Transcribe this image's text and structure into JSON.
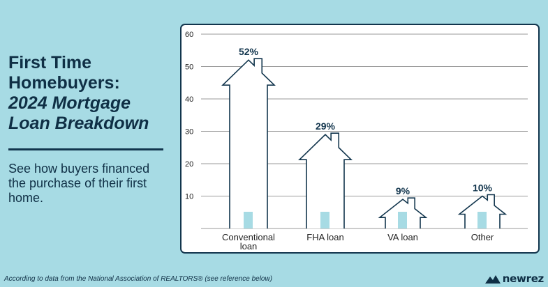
{
  "heading": {
    "line1": "First Time",
    "line2": "Homebuyers:",
    "line3": "2024 Mortgage",
    "line4": "Loan Breakdown"
  },
  "subtitle": "See how buyers financed the purchase of their first home.",
  "footnote": "According to data from the National Association of REALTORS® (see reference below)",
  "logo": {
    "text": "newrez",
    "icon": "newrez-roof-logo"
  },
  "colors": {
    "background": "#a7dbe4",
    "navy": "#12354d",
    "door": "#a7dbe4"
  },
  "chart_data": {
    "type": "bar",
    "bar_shape": "house",
    "categories": [
      "Conventional loan",
      "FHA loan",
      "VA loan",
      "Other"
    ],
    "category_lines": [
      [
        "Conventional",
        "loan"
      ],
      [
        "FHA loan"
      ],
      [
        "VA loan"
      ],
      [
        "Other"
      ]
    ],
    "values": [
      52,
      29,
      9,
      10
    ],
    "data_labels": [
      "52%",
      "29%",
      "9%",
      "10%"
    ],
    "ylim": [
      0,
      60
    ],
    "yticks": [
      10,
      20,
      30,
      40,
      50,
      60
    ],
    "ytick_labels": [
      "10",
      "20",
      "30",
      "40",
      "50",
      "60"
    ],
    "grid": true
  }
}
